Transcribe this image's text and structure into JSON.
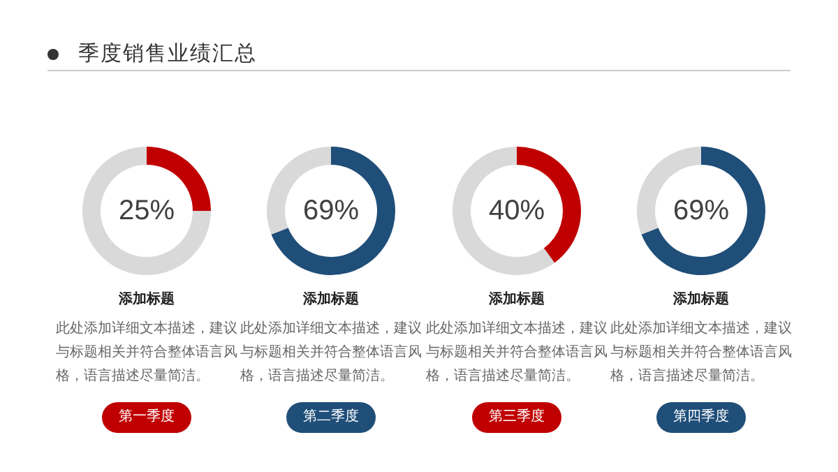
{
  "chart_data": [
    {
      "type": "other",
      "title": "季度销售业绩汇总"
    },
    {
      "type": "donut",
      "title": "添加标题",
      "categories": [
        null,
        null
      ],
      "values": [
        25,
        75
      ],
      "colors": [
        "#c00000",
        "#d9d9d9"
      ],
      "value_labels": [
        "25%",
        null
      ],
      "annotations": [
        "此处添加详细文本描述，建议与标题相关并符合整体语言风格，语言描述尽量简洁。",
        "第一季度"
      ]
    },
    {
      "type": "donut",
      "title": "添加标题",
      "categories": [
        null,
        null
      ],
      "values": [
        69,
        31
      ],
      "colors": [
        "#1f4e79",
        "#d9d9d9"
      ],
      "value_labels": [
        "69%",
        null
      ],
      "annotations": [
        "此处添加详细文本描述，建议与标题相关并符合整体语言风格，语言描述尽量简洁。",
        "第二季度"
      ]
    },
    {
      "type": "donut",
      "title": "添加标题",
      "categories": [
        null,
        null
      ],
      "values": [
        40,
        60
      ],
      "colors": [
        "#c00000",
        "#d9d9d9"
      ],
      "value_labels": [
        "40%",
        null
      ],
      "annotations": [
        "此处添加详细文本描述，建议与标题相关并符合整体语言风格，语言描述尽量简洁。",
        "第三季度"
      ]
    },
    {
      "type": "donut",
      "title": "添加标题",
      "categories": [
        null,
        null
      ],
      "values": [
        69,
        31
      ],
      "colors": [
        "#1f4e79",
        "#d9d9d9"
      ],
      "value_labels": [
        "69%",
        null
      ],
      "annotations": [
        "此处添加详细文本描述，建议与标题相关并符合整体语言风格，语言描述尽量简洁。",
        "第四季度"
      ]
    }
  ]
}
